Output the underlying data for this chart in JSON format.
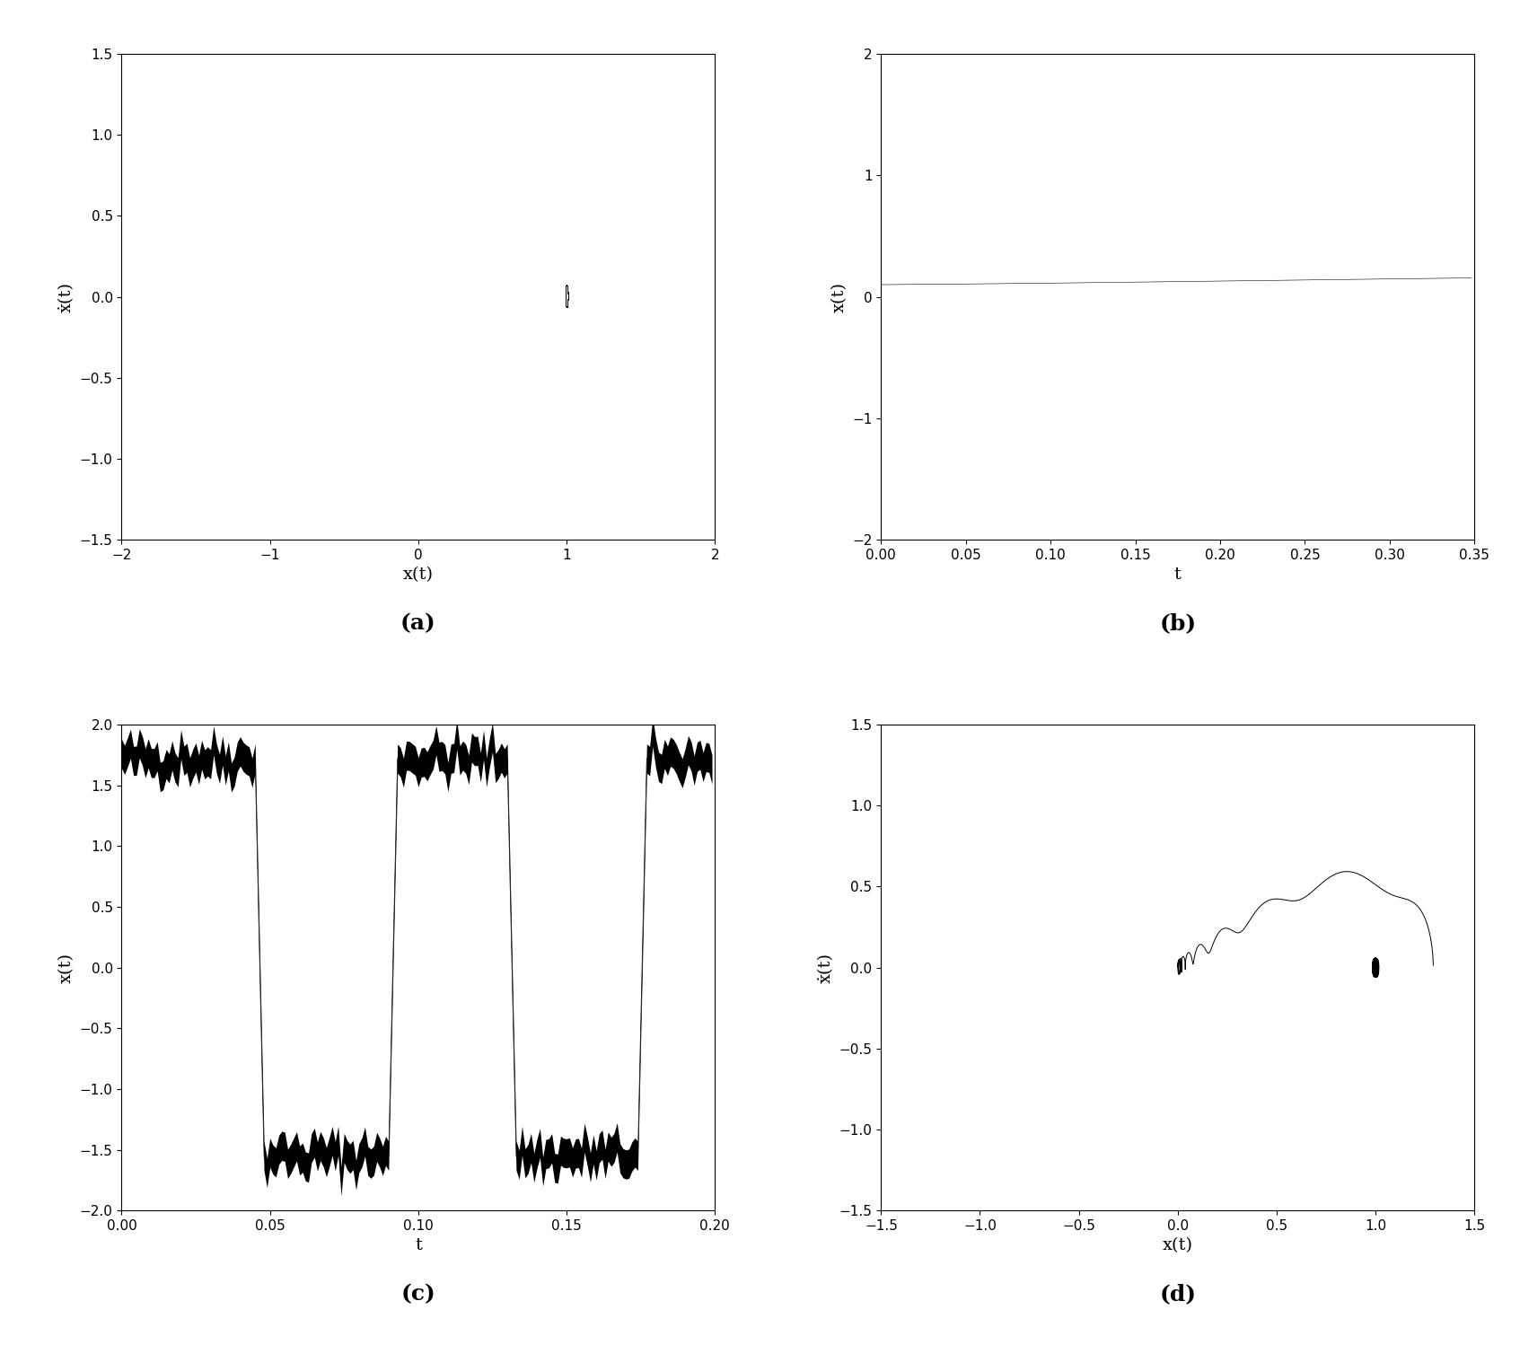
{
  "fig_width": 16.93,
  "fig_height": 14.98,
  "dpi": 100,
  "background_color": "#ffffff",
  "subplot_a": {
    "xlabel": "x(t)",
    "ylabel": "ẋ(t)",
    "xlim": [
      -2,
      2
    ],
    "ylim": [
      -1.5,
      1.5
    ],
    "xticks": [
      -2,
      -1,
      0,
      1,
      2
    ],
    "yticks": [
      -1.5,
      -1,
      -0.5,
      0,
      0.5,
      1,
      1.5
    ],
    "label": "(a)"
  },
  "subplot_b": {
    "xlabel": "t",
    "ylabel": "x(t)",
    "xlim": [
      0,
      0.35
    ],
    "ylim": [
      -2,
      2
    ],
    "xticks": [
      0,
      0.05,
      0.1,
      0.15,
      0.2,
      0.25,
      0.3,
      0.35
    ],
    "yticks": [
      -2,
      -1,
      0,
      1,
      2
    ],
    "label": "(b)"
  },
  "subplot_c": {
    "xlabel": "t",
    "ylabel": "x(t)",
    "xlim": [
      0,
      0.2
    ],
    "ylim": [
      -2,
      2
    ],
    "xticks": [
      0,
      0.05,
      0.1,
      0.15,
      0.2
    ],
    "yticks": [
      -2,
      -1.5,
      -1,
      -0.5,
      0,
      0.5,
      1,
      1.5,
      2
    ],
    "label": "(c)"
  },
  "subplot_d": {
    "xlabel": "x(t)",
    "ylabel": "ẋ(t)",
    "xlim": [
      -1.5,
      1.5
    ],
    "ylim": [
      -1.5,
      1.5
    ],
    "xticks": [
      -1.5,
      -1,
      -0.5,
      0,
      0.5,
      1,
      1.5
    ],
    "yticks": [
      -1.5,
      -1,
      -0.5,
      0,
      0.5,
      1,
      1.5
    ],
    "label": "(d)"
  },
  "plot_color": "#000000",
  "label_fontsize": 14,
  "tick_fontsize": 11,
  "caption_fontsize": 18
}
